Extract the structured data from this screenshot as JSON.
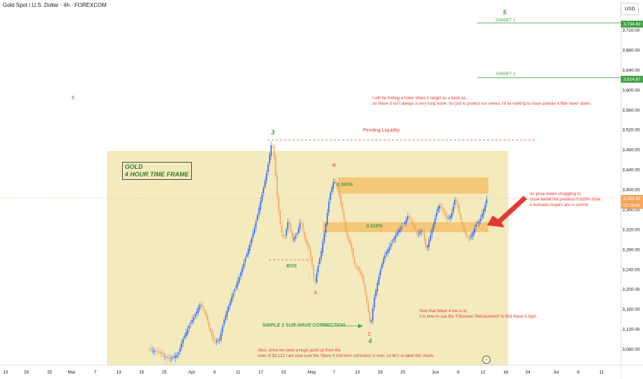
{
  "header": {
    "title": "Gold Spot / U.S. Dollar · 4h · FOREXCOM",
    "currency_button": "USD"
  },
  "annotations": {
    "gold_box_line1": "GOLD",
    "gold_box_line2": "4 HOUR TIME FRAME",
    "note_top_line1": "I will be finding a lower Wave 5 target as a back up,",
    "note_top_line2": "as Wave 5 isn't always a very long wave. So just to protect our selves, I'll be looking to close partials a little lower down.",
    "note_right_line1": "As price keeps struggling to",
    "note_right_line2": "close below the previous 0.618% zone,",
    "note_right_line3": "it indicates buyers are in control.",
    "note_mid_line1": "Now that Wave 4 low is in,",
    "note_mid_line2": "it is time to use the 'Fibonnaci Retracement' to find Wave 5 high.",
    "note_bottom_line1": "Also, since we seen a huge push up from the",
    "note_bottom_line2": "lows of $3,122 I am now sure the 'Wave 4 mid term correction is over, so let's re label the charts.",
    "pending_liquidity": "Pending Liquidity",
    "bos": "BOS",
    "sub_wave": "SIMPLE 3 SUB-WAVE CORRECTION",
    "zone_upper": "0.365%",
    "zone_lower": "0.618%",
    "wave_3": "3",
    "wave_4": "4",
    "wave_5": "5",
    "wave_a": "A",
    "wave_b": "B",
    "wave_c": "C",
    "stray_5": "5",
    "target_1": "TARGET 1",
    "target_2": "TARGET 2"
  },
  "price_tags": {
    "target_2": "3,734.89",
    "target_1": "3,624.87",
    "current": "3,383.69",
    "countdown": "02:18:42"
  },
  "colors": {
    "green": "#43a047",
    "red": "#e53935",
    "zone": "#f5c26b",
    "bg_zone": "#f1e7b3",
    "candle_up": "#2962ff",
    "candle_down": "#f7a35c"
  },
  "chart_data": {
    "type": "candlestick",
    "ylim": [
      3050,
      3780
    ],
    "y_ticks": [
      3080,
      3120,
      3160,
      3200,
      3240,
      3280,
      3320,
      3360,
      3400,
      3440,
      3480,
      3520,
      3560,
      3600,
      3640,
      3680,
      3720
    ],
    "y_tick_labels": [
      "3,080.00",
      "3,120.00",
      "3,160.00",
      "3,200.00",
      "3,240.00",
      "3,280.00",
      "3,320.00",
      "3,360.00",
      "3,400.00",
      "3,440.00",
      "3,480.00",
      "3,520.00",
      "3,560.00",
      "3,600.00",
      "3,640.00",
      "3,680.00",
      "3,720.00"
    ],
    "x_tick_labels": [
      "13",
      "19",
      "25",
      "Mar",
      "7",
      "13",
      "19",
      "25",
      "Apr",
      "6",
      "11",
      "17",
      "23",
      "May",
      "7",
      "13",
      "19",
      "25",
      "Jun",
      "6",
      "12",
      "18",
      "24",
      "Jul",
      "6",
      "11"
    ],
    "levels": {
      "target_2": 3734.89,
      "target_1": 3624.87,
      "current": 3383.69,
      "pending_liquidity": 3500
    },
    "zones": [
      {
        "label": "0.365%",
        "from": 3392,
        "to": 3425
      },
      {
        "label": "0.618%",
        "from": 3315,
        "to": 3335
      }
    ],
    "path": [
      [
        215,
        3080
      ],
      [
        230,
        3075
      ],
      [
        245,
        3060
      ],
      [
        258,
        3070
      ],
      [
        265,
        3100
      ],
      [
        275,
        3130
      ],
      [
        283,
        3150
      ],
      [
        290,
        3170
      ],
      [
        297,
        3155
      ],
      [
        304,
        3120
      ],
      [
        310,
        3095
      ],
      [
        318,
        3100
      ],
      [
        325,
        3140
      ],
      [
        332,
        3170
      ],
      [
        340,
        3200
      ],
      [
        348,
        3230
      ],
      [
        355,
        3260
      ],
      [
        362,
        3290
      ],
      [
        370,
        3330
      ],
      [
        378,
        3380
      ],
      [
        386,
        3430
      ],
      [
        394,
        3498
      ],
      [
        398,
        3460
      ],
      [
        402,
        3380
      ],
      [
        407,
        3320
      ],
      [
        412,
        3300
      ],
      [
        418,
        3340
      ],
      [
        424,
        3300
      ],
      [
        430,
        3310
      ],
      [
        436,
        3340
      ],
      [
        442,
        3300
      ],
      [
        448,
        3280
      ],
      [
        452,
        3250
      ],
      [
        456,
        3210
      ],
      [
        460,
        3240
      ],
      [
        466,
        3280
      ],
      [
        472,
        3330
      ],
      [
        478,
        3390
      ],
      [
        484,
        3420
      ],
      [
        490,
        3400
      ],
      [
        496,
        3360
      ],
      [
        502,
        3310
      ],
      [
        508,
        3290
      ],
      [
        514,
        3250
      ],
      [
        520,
        3240
      ],
      [
        526,
        3220
      ],
      [
        531,
        3180
      ],
      [
        537,
        3125
      ],
      [
        542,
        3180
      ],
      [
        548,
        3220
      ],
      [
        555,
        3260
      ],
      [
        562,
        3280
      ],
      [
        570,
        3300
      ],
      [
        578,
        3320
      ],
      [
        585,
        3330
      ],
      [
        592,
        3350
      ],
      [
        598,
        3330
      ],
      [
        605,
        3310
      ],
      [
        612,
        3320
      ],
      [
        618,
        3280
      ],
      [
        624,
        3310
      ],
      [
        630,
        3340
      ],
      [
        636,
        3370
      ],
      [
        642,
        3360
      ],
      [
        648,
        3340
      ],
      [
        654,
        3350
      ],
      [
        660,
        3385
      ],
      [
        666,
        3350
      ],
      [
        672,
        3320
      ],
      [
        678,
        3300
      ],
      [
        684,
        3310
      ],
      [
        690,
        3330
      ],
      [
        696,
        3340
      ],
      [
        702,
        3365
      ],
      [
        706,
        3384
      ]
    ]
  }
}
